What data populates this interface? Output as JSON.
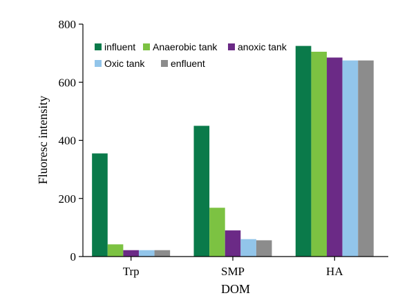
{
  "chart_data": {
    "type": "bar",
    "title": "",
    "xlabel": "DOM",
    "ylabel": "Fluoresc intensity",
    "ylim": [
      0,
      800
    ],
    "yticks": [
      0,
      200,
      400,
      600,
      800
    ],
    "categories": [
      "Trp",
      "SMP",
      "HA"
    ],
    "legend_position": "top-left",
    "grid": false,
    "series": [
      {
        "name": "influent",
        "color": "#0a7a4a",
        "values": [
          355,
          450,
          725
        ]
      },
      {
        "name": "Anaerobic tank",
        "color": "#7cc242",
        "values": [
          42,
          168,
          705
        ]
      },
      {
        "name": "anoxic tank",
        "color": "#6b2a86",
        "values": [
          22,
          90,
          685
        ]
      },
      {
        "name": "Oxic tank",
        "color": "#92c5ea",
        "values": [
          22,
          60,
          675
        ]
      },
      {
        "name": "enfluent",
        "color": "#8c8c8c",
        "values": [
          22,
          56,
          675
        ]
      }
    ]
  }
}
